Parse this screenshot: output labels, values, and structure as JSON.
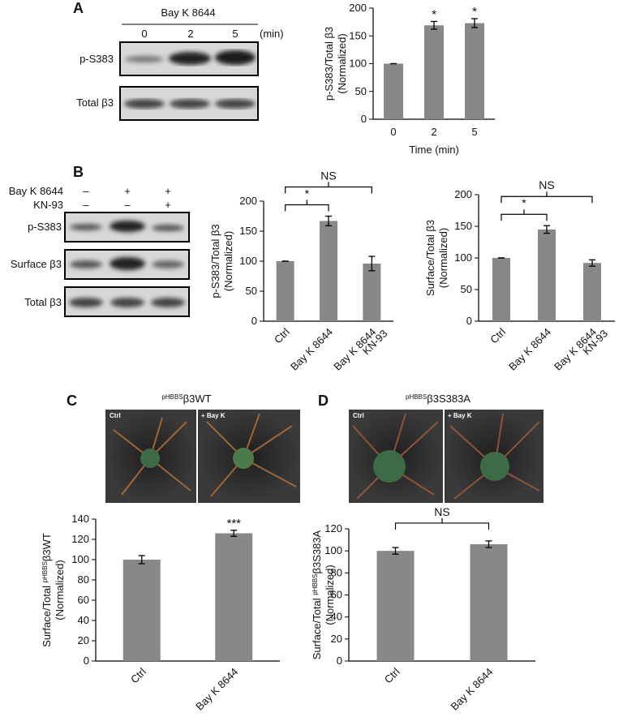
{
  "panel_labels": [
    "A",
    "B",
    "C",
    "D"
  ],
  "blot_a": {
    "treatment": "Bay K 8644",
    "times": [
      "0",
      "2",
      "5"
    ],
    "unit": "(min)",
    "rows": [
      "p-S383",
      "Total β3"
    ]
  },
  "blot_b": {
    "conditions": [
      {
        "label": "Bay K 8644",
        "signs": [
          "–",
          "+",
          "+"
        ]
      },
      {
        "label": "KN-93",
        "signs": [
          "–",
          "–",
          "+"
        ]
      }
    ],
    "rows": [
      "p-S383",
      "Surface β3",
      "Total β3"
    ]
  },
  "image_c": {
    "panels": [
      "Ctrl",
      "+ Bay K"
    ]
  },
  "image_d": {
    "panels": [
      "Ctrl",
      "+ Bay K"
    ]
  },
  "chart_data": [
    {
      "type": "bar",
      "y_label": [
        "p-S383/Total β3",
        "(Normalized)"
      ],
      "x_label": "Time (min)",
      "categories": [
        [
          "0"
        ],
        [
          "2"
        ],
        [
          "5"
        ]
      ],
      "values": [
        100,
        169,
        173
      ],
      "errors": [
        0,
        7,
        8
      ],
      "significance": [
        null,
        "*",
        "*"
      ],
      "color": "#888888",
      "ylim": [
        0,
        200
      ],
      "yticks": [
        0,
        50,
        100,
        150,
        200
      ]
    },
    {
      "type": "bar",
      "y_label": [
        "p-S383/Total β3",
        "(Normalized)"
      ],
      "categories": [
        [
          "Ctrl"
        ],
        [
          "Bay K 8644"
        ],
        [
          "Bay K 8644",
          "KN-93"
        ]
      ],
      "values": [
        100,
        167,
        96
      ],
      "errors": [
        0,
        8,
        12
      ],
      "brackets": [
        {
          "label": "*",
          "span": [
            0,
            1
          ]
        },
        {
          "label": "NS",
          "span": [
            0,
            2
          ]
        }
      ],
      "color": "#888888",
      "ylim": [
        0,
        200
      ],
      "yticks": [
        0,
        50,
        100,
        150,
        200
      ]
    },
    {
      "type": "bar",
      "y_label": [
        "Surface/Total β3",
        "(Normalized)"
      ],
      "categories": [
        [
          "Ctrl"
        ],
        [
          "Bay K 8644"
        ],
        [
          "Bay K 8644",
          "KN-93"
        ]
      ],
      "values": [
        100,
        145,
        92
      ],
      "errors": [
        0,
        6,
        5
      ],
      "brackets": [
        {
          "label": "*",
          "span": [
            0,
            1
          ]
        },
        {
          "label": "NS",
          "span": [
            0,
            2
          ]
        }
      ],
      "color": "#888888",
      "ylim": [
        0,
        200
      ],
      "yticks": [
        0,
        50,
        100,
        150,
        200
      ]
    },
    {
      "type": "bar",
      "title": {
        "sup": "pHBBS",
        "rest": "β3WT"
      },
      "y_label": [
        {
          "text": "Surface/Total ",
          "sup": "pHBBS",
          "rest": "β3WT"
        },
        "(Normalized)"
      ],
      "categories": [
        [
          "Ctrl"
        ],
        [
          "Bay K 8644"
        ]
      ],
      "values": [
        100,
        126
      ],
      "errors": [
        4,
        3
      ],
      "significance": [
        null,
        "***"
      ],
      "color": "#888888",
      "ylim": [
        0,
        140
      ],
      "yticks": [
        0,
        20,
        40,
        60,
        80,
        100,
        120,
        140
      ]
    },
    {
      "type": "bar",
      "title": {
        "sup": "pHBBS",
        "rest": "β3S383A"
      },
      "y_label": [
        {
          "text": "Surface/Total ",
          "sup": "pHBBS",
          "rest": "β3S383A"
        },
        "(Normalized)"
      ],
      "categories": [
        [
          "Ctrl"
        ],
        [
          "Bay K 8644"
        ]
      ],
      "values": [
        100,
        106
      ],
      "errors": [
        3,
        3
      ],
      "brackets": [
        {
          "label": "NS",
          "span": [
            0,
            1
          ]
        }
      ],
      "color": "#888888",
      "ylim": [
        0,
        120
      ],
      "yticks": [
        0,
        20,
        40,
        60,
        80,
        100,
        120
      ]
    }
  ]
}
